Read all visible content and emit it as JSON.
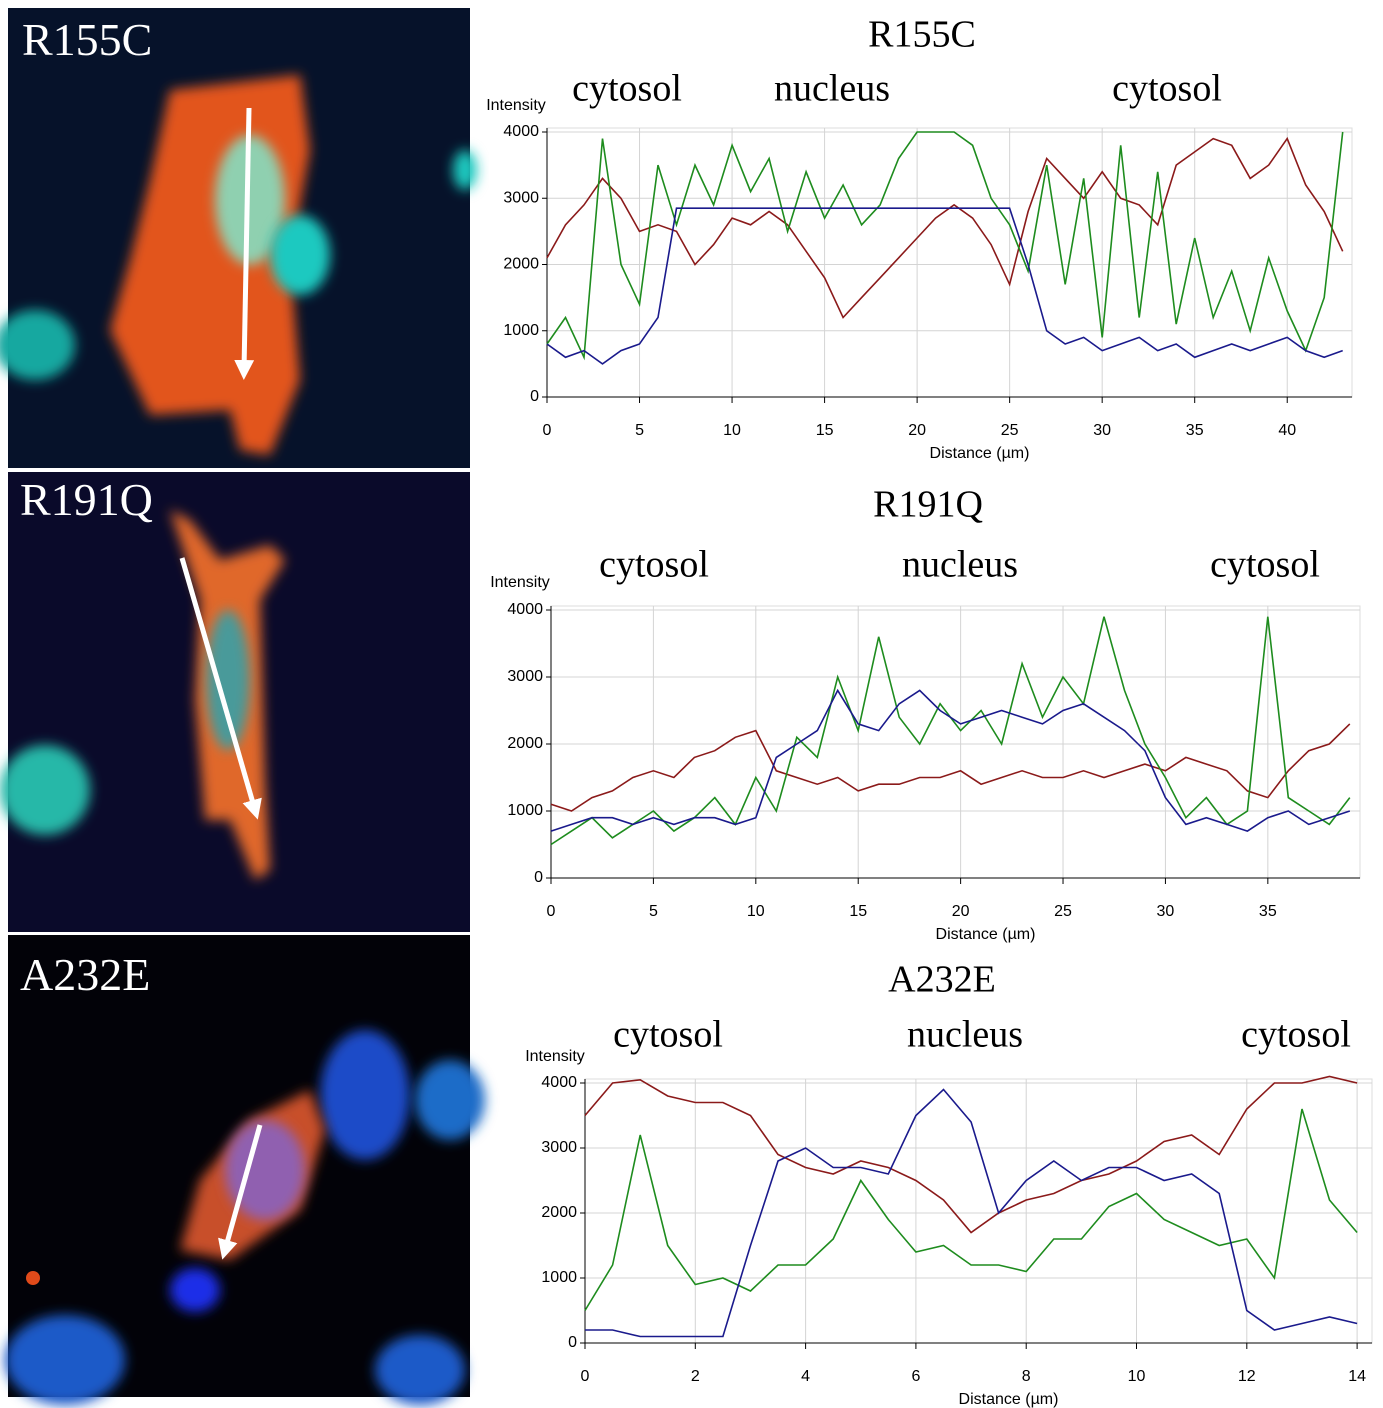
{
  "images": [
    {
      "label": "R155C"
    },
    {
      "label": "R191Q"
    },
    {
      "label": "A232E"
    }
  ],
  "chart_data": [
    {
      "type": "line",
      "title": "R155C",
      "annotations": [
        "cytosol",
        "nucleus",
        "cytosol"
      ],
      "ylabel": "Intensity",
      "xlabel": "Distance (µm)",
      "x": [
        0,
        1,
        2,
        3,
        4,
        5,
        6,
        7,
        8,
        9,
        10,
        11,
        12,
        13,
        14,
        15,
        16,
        17,
        18,
        19,
        20,
        21,
        22,
        23,
        24,
        25,
        26,
        27,
        28,
        29,
        30,
        31,
        32,
        33,
        34,
        35,
        36,
        37,
        38,
        39,
        40,
        41,
        42,
        43
      ],
      "xlim": [
        0,
        43.5
      ],
      "xticks": [
        0,
        5,
        10,
        15,
        20,
        25,
        30,
        35,
        40
      ],
      "ylim": [
        0,
        4000
      ],
      "yticks": [
        0,
        1000,
        2000,
        3000,
        4000
      ],
      "grid": true,
      "series": [
        {
          "color": "#8b1a1a",
          "values": [
            2100,
            2600,
            2900,
            3300,
            3000,
            2500,
            2600,
            2500,
            2000,
            2300,
            2700,
            2600,
            2800,
            2600,
            2200,
            1800,
            1200,
            1500,
            1800,
            2100,
            2400,
            2700,
            2900,
            2700,
            2300,
            1700,
            2800,
            3600,
            3300,
            3000,
            3400,
            3000,
            2900,
            2600,
            3500,
            3700,
            3900,
            3800,
            3300,
            3500,
            3900,
            3200,
            2800,
            2200
          ]
        },
        {
          "color": "#1e8c1e",
          "values": [
            800,
            1200,
            600,
            3900,
            2000,
            1400,
            3500,
            2600,
            3500,
            2900,
            3800,
            3100,
            3600,
            2500,
            3400,
            2700,
            3200,
            2600,
            2900,
            3600,
            4000,
            4000,
            4000,
            3800,
            3000,
            2600,
            1900,
            3500,
            1700,
            3300,
            900,
            3800,
            1200,
            3400,
            1100,
            2400,
            1200,
            1900,
            1000,
            2100,
            1300,
            700,
            1500,
            4000
          ]
        },
        {
          "color": "#1a1a8c",
          "values": [
            800,
            600,
            700,
            500,
            700,
            800,
            1200,
            2850,
            2850,
            2850,
            2850,
            2850,
            2850,
            2850,
            2850,
            2850,
            2850,
            2850,
            2850,
            2850,
            2850,
            2850,
            2850,
            2850,
            2850,
            2850,
            2000,
            1000,
            800,
            900,
            700,
            800,
            900,
            700,
            800,
            600,
            700,
            800,
            700,
            800,
            900,
            700,
            600,
            700
          ]
        }
      ]
    },
    {
      "type": "line",
      "title": "R191Q",
      "annotations": [
        "cytosol",
        "nucleus",
        "cytosol"
      ],
      "ylabel": "Intensity",
      "xlabel": "Distance (µm)",
      "x": [
        0,
        1,
        2,
        3,
        4,
        5,
        6,
        7,
        8,
        9,
        10,
        11,
        12,
        13,
        14,
        15,
        16,
        17,
        18,
        19,
        20,
        21,
        22,
        23,
        24,
        25,
        26,
        27,
        28,
        29,
        30,
        31,
        32,
        33,
        34,
        35,
        36,
        37,
        38,
        39
      ],
      "xlim": [
        0,
        39.5
      ],
      "xticks": [
        0,
        5,
        10,
        15,
        20,
        25,
        30,
        35
      ],
      "ylim": [
        0,
        4000
      ],
      "yticks": [
        0,
        1000,
        2000,
        3000,
        4000
      ],
      "grid": true,
      "series": [
        {
          "color": "#8b1a1a",
          "values": [
            1100,
            1000,
            1200,
            1300,
            1500,
            1600,
            1500,
            1800,
            1900,
            2100,
            2200,
            1600,
            1500,
            1400,
            1500,
            1300,
            1400,
            1400,
            1500,
            1500,
            1600,
            1400,
            1500,
            1600,
            1500,
            1500,
            1600,
            1500,
            1600,
            1700,
            1600,
            1800,
            1700,
            1600,
            1300,
            1200,
            1600,
            1900,
            2000,
            2300
          ]
        },
        {
          "color": "#1e8c1e",
          "values": [
            500,
            700,
            900,
            600,
            800,
            1000,
            700,
            900,
            1200,
            800,
            1500,
            1000,
            2100,
            1800,
            3000,
            2200,
            3600,
            2400,
            2000,
            2600,
            2200,
            2500,
            2000,
            3200,
            2400,
            3000,
            2600,
            3900,
            2800,
            2000,
            1500,
            900,
            1200,
            800,
            1000,
            3900,
            1200,
            1000,
            800,
            1200
          ]
        },
        {
          "color": "#1a1a8c",
          "values": [
            700,
            800,
            900,
            900,
            800,
            900,
            800,
            900,
            900,
            800,
            900,
            1800,
            2000,
            2200,
            2800,
            2300,
            2200,
            2600,
            2800,
            2500,
            2300,
            2400,
            2500,
            2400,
            2300,
            2500,
            2600,
            2400,
            2200,
            1900,
            1200,
            800,
            900,
            800,
            700,
            900,
            1000,
            800,
            900,
            1000
          ]
        }
      ]
    },
    {
      "type": "line",
      "title": "A232E",
      "annotations": [
        "cytosol",
        "nucleus",
        "cytosol"
      ],
      "ylabel": "Intensity",
      "xlabel": "Distance (µm)",
      "x": [
        0,
        0.5,
        1,
        1.5,
        2,
        2.5,
        3,
        3.5,
        4,
        4.5,
        5,
        5.5,
        6,
        6.5,
        7,
        7.5,
        8,
        8.5,
        9,
        9.5,
        10,
        10.5,
        11,
        11.5,
        12,
        12.5,
        13,
        13.5,
        14
      ],
      "xlim": [
        0,
        14.27
      ],
      "xticks": [
        0,
        2,
        4,
        6,
        8,
        10,
        12,
        14
      ],
      "ylim": [
        0,
        4000
      ],
      "yticks": [
        0,
        1000,
        2000,
        3000,
        4000
      ],
      "grid": true,
      "series": [
        {
          "color": "#8b1a1a",
          "values": [
            3500,
            4000,
            4050,
            3800,
            3700,
            3700,
            3500,
            2900,
            2700,
            2600,
            2800,
            2700,
            2500,
            2200,
            1700,
            2000,
            2200,
            2300,
            2500,
            2600,
            2800,
            3100,
            3200,
            2900,
            3600,
            4000,
            4000,
            4100,
            4000
          ]
        },
        {
          "color": "#1e8c1e",
          "values": [
            500,
            1200,
            3200,
            1500,
            900,
            1000,
            800,
            1200,
            1200,
            1600,
            2500,
            1900,
            1400,
            1500,
            1200,
            1200,
            1100,
            1600,
            1600,
            2100,
            2300,
            1900,
            1700,
            1500,
            1600,
            1000,
            3600,
            2200,
            1700
          ]
        },
        {
          "color": "#1a1a8c",
          "values": [
            200,
            200,
            100,
            100,
            100,
            100,
            1500,
            2800,
            3000,
            2700,
            2700,
            2600,
            3500,
            3900,
            3400,
            2000,
            2500,
            2800,
            2500,
            2700,
            2700,
            2500,
            2600,
            2300,
            500,
            200,
            300,
            400,
            300
          ]
        }
      ]
    }
  ]
}
